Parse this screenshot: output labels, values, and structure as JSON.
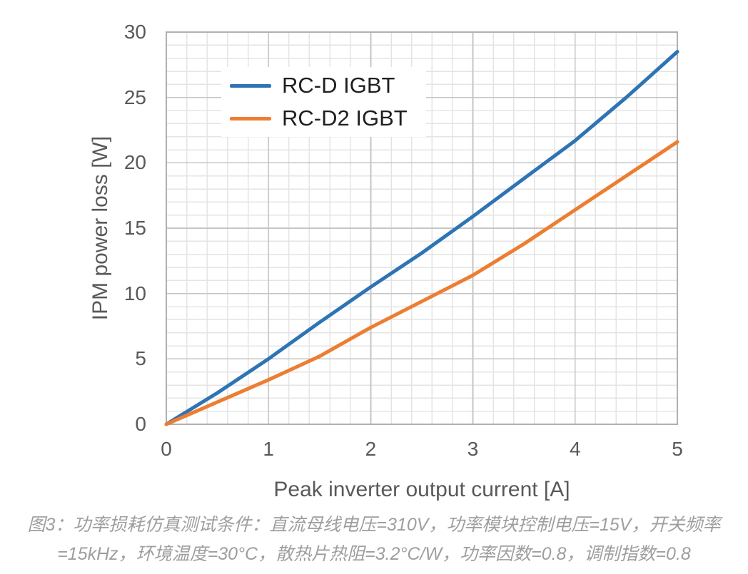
{
  "figure": {
    "caption_line1": "图3：功率损耗仿真测试条件：直流母线电压=310V，功率模块控制电压=15V，开关频率",
    "caption_line2": "=15kHz，环境温度=30°C，散热片热阻=3.2°C/W，功率因数=0.8，调制指数=0.8"
  },
  "chart_data": {
    "type": "line",
    "title": "",
    "xlabel": "Peak inverter output current [A]",
    "ylabel": "IPM power loss [W]",
    "xlim": [
      0,
      5
    ],
    "ylim": [
      0,
      30
    ],
    "x_ticks": [
      0,
      1,
      2,
      3,
      4,
      5
    ],
    "y_ticks": [
      0,
      5,
      10,
      15,
      20,
      25,
      30
    ],
    "grid": {
      "x_minor": 0.2,
      "x_major": 1,
      "y_minor": 1,
      "y_major": 5
    },
    "legend_position": "inside-top-left",
    "x": [
      0,
      0.5,
      1,
      1.5,
      2,
      2.5,
      3,
      3.5,
      4,
      4.5,
      5
    ],
    "series": [
      {
        "name": "RC-D IGBT",
        "color": "#2E74B5",
        "values": [
          0,
          2.4,
          5.0,
          7.8,
          10.5,
          13.1,
          15.9,
          18.8,
          21.7,
          25.0,
          28.5
        ]
      },
      {
        "name": "RC-D2 IGBT",
        "color": "#ED7D31",
        "values": [
          0,
          1.7,
          3.4,
          5.2,
          7.4,
          9.4,
          11.4,
          13.8,
          16.4,
          19.0,
          21.6
        ]
      }
    ]
  }
}
